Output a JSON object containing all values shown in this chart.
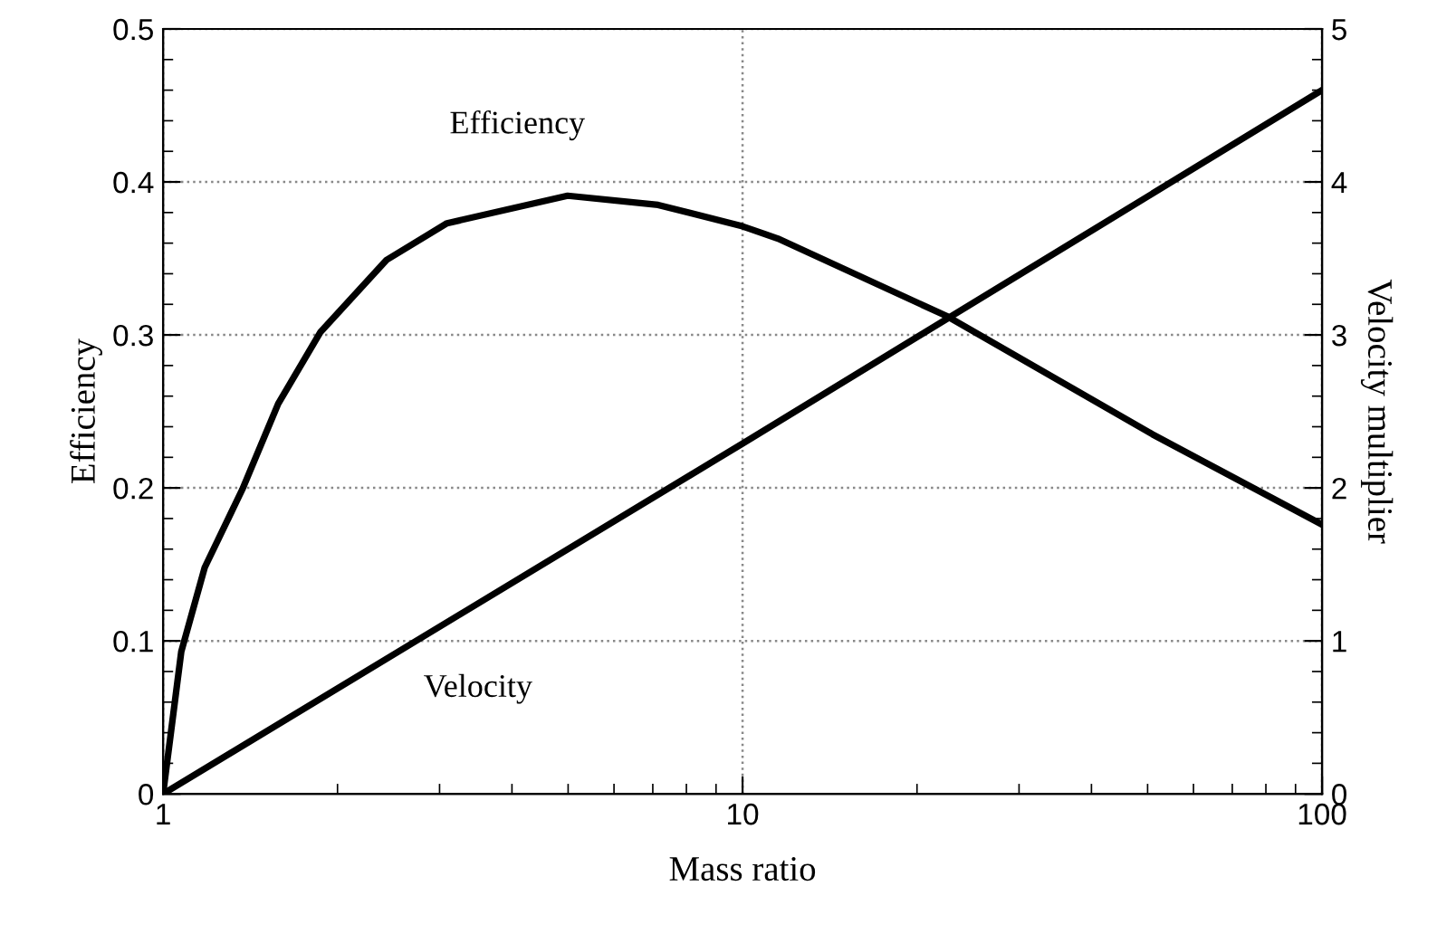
{
  "chart_data": {
    "type": "line",
    "xlabel": "Mass ratio",
    "ylabel": "Efficiency",
    "y2label": "Velocity multiplier",
    "log": "x",
    "xlim": [
      1,
      100
    ],
    "xticks": [
      1,
      10,
      100
    ],
    "ylim": [
      0,
      0.5
    ],
    "yticks": [
      0,
      0.1,
      0.2,
      0.3,
      0.4,
      0.5
    ],
    "y2lim": [
      0,
      5
    ],
    "y2ticks": [
      0,
      1,
      2,
      3,
      4,
      5
    ],
    "grid": true,
    "legend": false,
    "marker": "none",
    "line_style": "solid",
    "series": [
      {
        "name": "Efficiency",
        "color": "#000000",
        "x": [
          1,
          1.075,
          1.18,
          1.37,
          1.58,
          1.87,
          2.43,
          3.09,
          4.99,
          7.15,
          10,
          11.5,
          22.6,
          51,
          100
        ],
        "values": [
          0,
          0.093,
          0.148,
          0.199,
          0.255,
          0.302,
          0.349,
          0.373,
          0.391,
          0.385,
          0.371,
          0.363,
          0.312,
          0.235,
          0.176
        ]
      },
      {
        "name": "Velocity",
        "color": "#000000",
        "axis": "y2",
        "x": [
          1,
          10,
          100
        ],
        "values": [
          0,
          2.29,
          4.6
        ]
      }
    ]
  }
}
